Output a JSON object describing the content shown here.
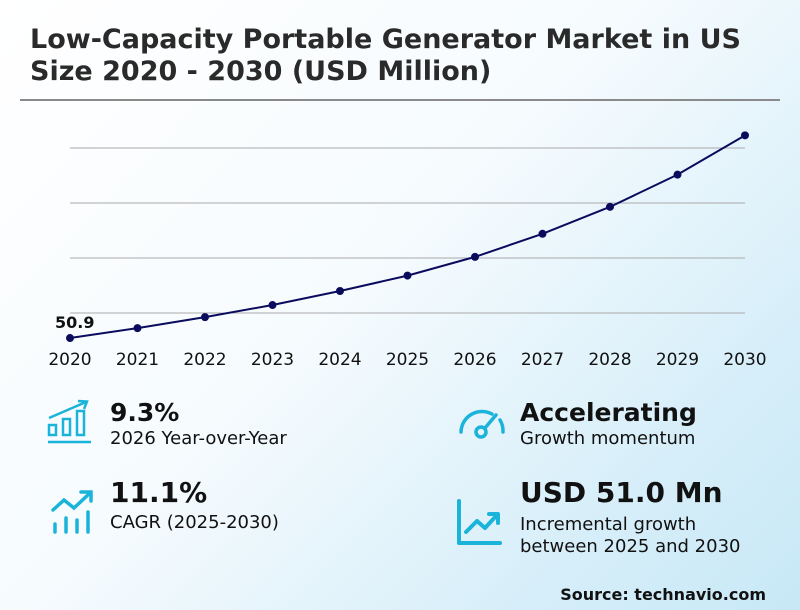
{
  "title_line1": "Low-Capacity Portable Generator Market in US",
  "title_line2": "Size 2020 - 2030 (USD Million)",
  "chart_data": {
    "type": "line",
    "title": "Low-Capacity Portable Generator Market in US Size 2020 - 2030 (USD Million)",
    "categories": [
      "2020",
      "2021",
      "2022",
      "2023",
      "2024",
      "2025",
      "2026",
      "2027",
      "2028",
      "2029",
      "2030"
    ],
    "values": [
      50.9,
      54.5,
      58.5,
      62.9,
      68.0,
      73.6,
      80.4,
      88.8,
      98.6,
      110.3,
      124.6
    ],
    "data_labels": [
      {
        "category": "2020",
        "text": "50.9"
      }
    ],
    "gridlines": [
      60,
      80,
      100,
      120
    ],
    "ylim": [
      50,
      130
    ],
    "grid": true,
    "y_tick_labels_shown": false,
    "line_color": "#0b0b5e"
  },
  "stats": {
    "yoy": {
      "value": "9.3%",
      "label": "2026 Year-over-Year",
      "icon": "bar-chart-growth-icon"
    },
    "momentum": {
      "value": "Accelerating",
      "label": "Growth momentum",
      "icon": "speedometer-icon"
    },
    "cagr": {
      "value": "11.1%",
      "label": "CAGR (2025-2030)",
      "icon": "trend-up-bars-icon"
    },
    "incremental": {
      "value": "USD 51.0 Mn",
      "label_line1": "Incremental growth",
      "label_line2": "between 2025 and 2030",
      "icon": "line-chart-up-icon"
    }
  },
  "accent_color": "#1ab3d9",
  "source": "Source: technavio.com"
}
